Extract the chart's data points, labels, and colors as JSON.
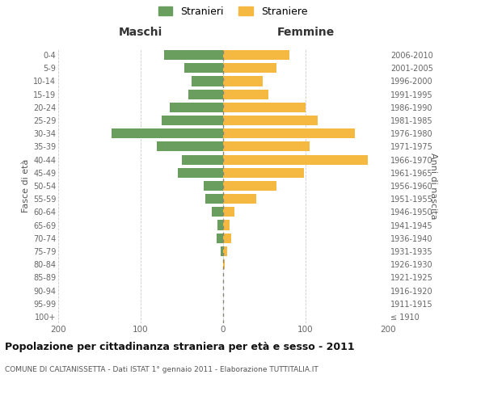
{
  "age_groups": [
    "100+",
    "95-99",
    "90-94",
    "85-89",
    "80-84",
    "75-79",
    "70-74",
    "65-69",
    "60-64",
    "55-59",
    "50-54",
    "45-49",
    "40-44",
    "35-39",
    "30-34",
    "25-29",
    "20-24",
    "15-19",
    "10-14",
    "5-9",
    "0-4"
  ],
  "birth_years": [
    "≤ 1910",
    "1911-1915",
    "1916-1920",
    "1921-1925",
    "1926-1930",
    "1931-1935",
    "1936-1940",
    "1941-1945",
    "1946-1950",
    "1951-1955",
    "1956-1960",
    "1961-1965",
    "1966-1970",
    "1971-1975",
    "1976-1980",
    "1981-1985",
    "1986-1990",
    "1991-1995",
    "1996-2000",
    "2001-2005",
    "2006-2010"
  ],
  "maschi": [
    0,
    0,
    0,
    0,
    0,
    3,
    8,
    7,
    14,
    22,
    24,
    55,
    50,
    80,
    135,
    75,
    65,
    42,
    38,
    47,
    72
  ],
  "femmine": [
    0,
    0,
    0,
    0,
    2,
    5,
    10,
    8,
    14,
    40,
    65,
    98,
    175,
    105,
    160,
    115,
    100,
    55,
    48,
    65,
    80
  ],
  "maschi_color": "#6a9e5f",
  "femmine_color": "#f5b942",
  "background_color": "#ffffff",
  "grid_color": "#cccccc",
  "title": "Popolazione per cittadinanza straniera per età e sesso - 2011",
  "subtitle": "COMUNE DI CALTANISSETTA - Dati ISTAT 1° gennaio 2011 - Elaborazione TUTTITALIA.IT",
  "xlabel_left": "Maschi",
  "xlabel_right": "Femmine",
  "ylabel_left": "Fasce di età",
  "ylabel_right": "Anni di nascita",
  "legend_maschi": "Stranieri",
  "legend_femmine": "Straniere",
  "xlim": 200,
  "bar_height": 0.75
}
